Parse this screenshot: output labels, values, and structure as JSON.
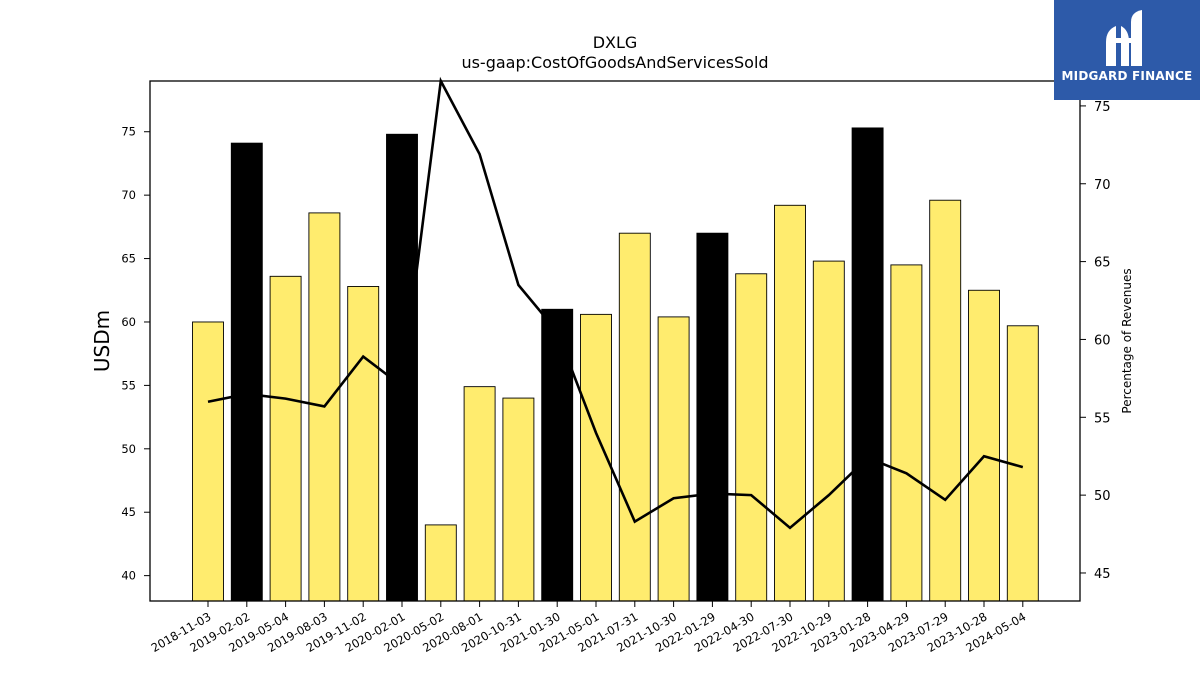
{
  "chart_data": {
    "type": "bar",
    "title": "DXLG",
    "subtitle": "us-gaap:CostOfGoodsAndServicesSold",
    "ylabel": "USDm",
    "ylabel_right": "Percentage of Revenues",
    "ylim": [
      38,
      79
    ],
    "ylim_right": [
      43.2,
      76.6
    ],
    "yticks": [
      40,
      45,
      50,
      55,
      60,
      65,
      70,
      75
    ],
    "yticks_right": [
      45,
      50,
      55,
      60,
      65,
      70,
      75
    ],
    "categories": [
      "2018-11-03",
      "2019-02-02",
      "2019-05-04",
      "2019-08-03",
      "2019-11-02",
      "2020-02-01",
      "2020-05-02",
      "2020-08-01",
      "2020-10-31",
      "2021-01-30",
      "2021-05-01",
      "2021-07-31",
      "2021-10-30",
      "2022-01-29",
      "2022-04-30",
      "2022-07-30",
      "2022-10-29",
      "2023-01-28",
      "2023-04-29",
      "2023-07-29",
      "2023-10-28",
      "2024-05-04"
    ],
    "series": [
      {
        "values": [
          60.0,
          74.1,
          63.6,
          68.6,
          62.8,
          74.8,
          44.0,
          54.9,
          54.0,
          61.0,
          60.6,
          67.0,
          60.4,
          67.0,
          63.8,
          69.2,
          64.8,
          75.3,
          64.5,
          69.6,
          62.5,
          59.7
        ]
      },
      {
        "type": "line",
        "axis": "right",
        "values": [
          56.0,
          56.5,
          56.2,
          55.7,
          58.9,
          57.0,
          77.0,
          71.9,
          63.5,
          60.5,
          54.0,
          48.3,
          49.8,
          50.1,
          50.0,
          47.9,
          50.0,
          52.4,
          51.4,
          49.7,
          52.5,
          51.8
        ]
      }
    ],
    "bar_colors": [
      "#ffec6e",
      "#000000",
      "#ffec6e",
      "#ffec6e",
      "#ffec6e",
      "#000000",
      "#ffec6e",
      "#ffec6e",
      "#ffec6e",
      "#000000",
      "#ffec6e",
      "#ffec6e",
      "#ffec6e",
      "#000000",
      "#ffec6e",
      "#ffec6e",
      "#ffec6e",
      "#000000",
      "#ffec6e",
      "#ffec6e",
      "#ffec6e",
      "#ffec6e"
    ],
    "line_color": "#000000",
    "grid": false
  },
  "logo": {
    "text": "MIDGARD FINANCE",
    "color": "#2d5aa9"
  }
}
